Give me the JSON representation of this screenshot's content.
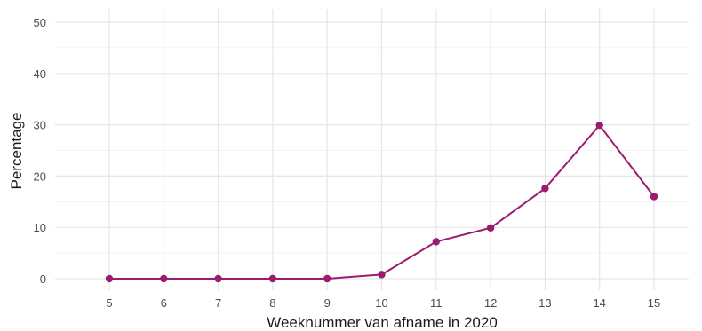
{
  "chart_data": {
    "type": "line",
    "xlabel": "Weeknummer van afname in 2020",
    "ylabel": "Percentage",
    "x": [
      5,
      6,
      7,
      8,
      9,
      10,
      11,
      12,
      13,
      14,
      15
    ],
    "series": [
      {
        "values": [
          0,
          0,
          0,
          0,
          0,
          0.8,
          7.2,
          9.9,
          17.6,
          29.9,
          16.0
        ]
      }
    ],
    "xlim": [
      4,
      16
    ],
    "ylim": [
      0,
      50
    ],
    "yticks": [
      0,
      10,
      20,
      30,
      40,
      50
    ],
    "xticks": [
      5,
      6,
      7,
      8,
      9,
      10,
      11,
      12,
      13,
      14,
      15
    ],
    "grid": true,
    "line_color": "#9b1b6e",
    "marker_color": "#9b1b6e"
  }
}
